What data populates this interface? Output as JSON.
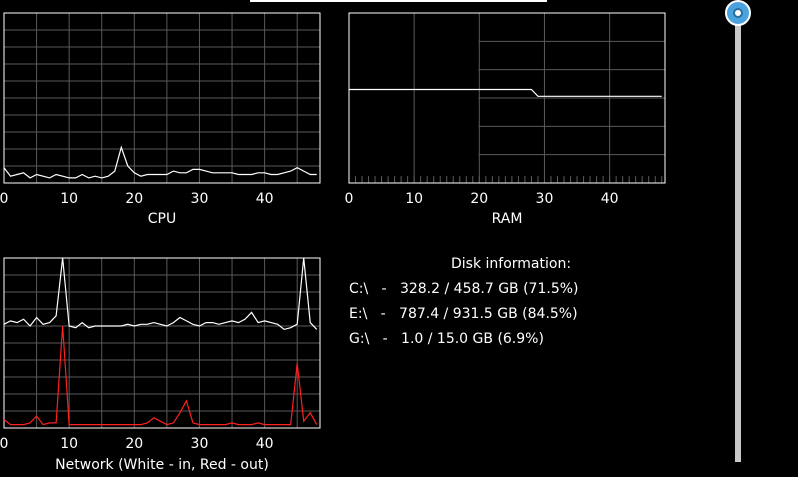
{
  "cpu_chart": {
    "caption": "CPU",
    "ticks": [
      "0",
      "10",
      "20",
      "30",
      "40"
    ],
    "color": "#ffffff",
    "values": [
      9,
      4,
      5,
      6,
      3,
      5,
      4,
      3,
      5,
      4,
      3,
      3,
      5,
      3,
      4,
      3,
      4,
      7,
      21,
      10,
      6,
      4,
      5,
      5,
      5,
      5,
      7,
      6,
      6,
      8,
      8,
      7,
      6,
      6,
      6,
      6,
      5,
      5,
      5,
      6,
      6,
      5,
      5,
      6,
      7,
      9,
      7,
      5,
      5
    ]
  },
  "ram_chart": {
    "caption": "RAM",
    "ticks": [
      "0",
      "10",
      "20",
      "30",
      "40"
    ],
    "color": "#ffffff",
    "values": [
      55,
      55,
      55,
      55,
      55,
      55,
      55,
      55,
      55,
      55,
      55,
      55,
      55,
      55,
      55,
      55,
      55,
      55,
      55,
      55,
      55,
      55,
      55,
      55,
      55,
      55,
      55,
      55,
      55,
      51,
      51,
      51,
      51,
      51,
      51,
      51,
      51,
      51,
      51,
      51,
      51,
      51,
      51,
      51,
      51,
      51,
      51,
      51,
      51
    ]
  },
  "network_chart": {
    "caption": "Network (White - in, Red - out)",
    "ticks": [
      "0",
      "10",
      "20",
      "30",
      "40"
    ],
    "in_color": "#ffffff",
    "out_color": "#ff2020",
    "in_values": [
      61,
      63,
      62,
      64,
      60,
      65,
      61,
      62,
      66,
      100,
      60,
      59,
      62,
      59,
      60,
      60,
      60,
      60,
      60,
      61,
      60,
      61,
      61,
      62,
      61,
      60,
      62,
      65,
      63,
      61,
      60,
      62,
      62,
      61,
      62,
      63,
      62,
      64,
      68,
      62,
      63,
      62,
      61,
      58,
      59,
      61,
      100,
      62,
      58
    ],
    "out_values": [
      5,
      2,
      2,
      2,
      3,
      7,
      2,
      3,
      3,
      60,
      2,
      2,
      2,
      2,
      2,
      2,
      2,
      2,
      2,
      2,
      2,
      2,
      3,
      6,
      4,
      2,
      3,
      9,
      16,
      3,
      2,
      2,
      2,
      2,
      2,
      3,
      2,
      2,
      2,
      3,
      2,
      2,
      2,
      2,
      2,
      38,
      4,
      9,
      2
    ]
  },
  "disk_info": {
    "title": "Disk information:",
    "drives": [
      {
        "text": "C:\\   -   328.2 / 458.7 GB (71.5%)"
      },
      {
        "text": "E:\\   -   787.4 / 931.5 GB (84.5%)"
      },
      {
        "text": "G:\\   -   1.0 / 15.0 GB (6.9%)"
      }
    ]
  },
  "scroll_slider": {
    "value": 0.0,
    "accent": "#4aa3df"
  }
}
